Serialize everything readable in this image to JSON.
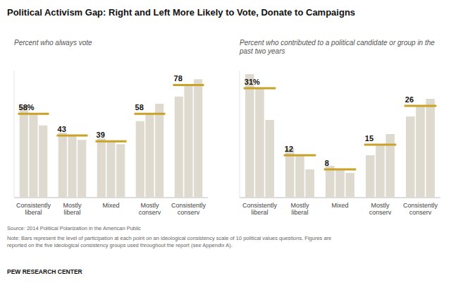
{
  "chart_data": [
    {
      "type": "bar",
      "title": "Political Activism Gap: Right and Left More Likely to Vote, Donate to Campaigns",
      "subtitle": "Percent who always vote",
      "categories": [
        "Consistently\nliberal",
        "Mostly\nliberal",
        "Mixed",
        "Mostly\nconserv",
        "Consistently\nconserv"
      ],
      "series": [
        {
          "color": "#dedad0",
          "values": [
            64,
            45,
            41,
            53,
            70
          ]
        },
        {
          "color": "#dedad0",
          "values": [
            58,
            43,
            39,
            58,
            78
          ]
        },
        {
          "color": "#dedad0",
          "values": [
            50,
            40,
            37,
            65,
            82
          ]
        },
        {
          "type": "line",
          "marker": "hline",
          "color": "#c9a227",
          "data_labels": true,
          "values": [
            58,
            43,
            39,
            58,
            78
          ],
          "value_labels": [
            "58%",
            "43",
            "39",
            "58",
            "78"
          ]
        }
      ],
      "ylim": [
        0,
        88
      ],
      "tick_labels": false,
      "grid": false,
      "annotations": [
        "Source: 2014 Political Polarization in the American Public",
        "Note: Bars represent the level of participation at each point on an ideological consistency scale of 10 political values questions. Figures are\nreported on the five ideological consistency groups used throughout the report (see Appendix A).",
        "PEW RESEARCH CENTER"
      ]
    },
    {
      "type": "bar",
      "subtitle": "Percent who contributed to a political candidate or group in the past two years",
      "categories": [
        "Consistently\nliberal",
        "Mostly\nliberal",
        "Mixed",
        "Mostly\nconserv",
        "Consistently\nconserv"
      ],
      "series": [
        {
          "color": "#dedad0",
          "values": [
            35,
            14,
            9,
            12,
            23
          ]
        },
        {
          "color": "#dedad0",
          "values": [
            31,
            12,
            8,
            15,
            26
          ]
        },
        {
          "color": "#dedad0",
          "values": [
            22,
            8,
            7,
            18,
            28
          ]
        },
        {
          "type": "line",
          "marker": "hline",
          "color": "#c9a227",
          "data_labels": true,
          "values": [
            31,
            12,
            8,
            15,
            26
          ],
          "value_labels": [
            "31%",
            "12",
            "8",
            "15",
            "26"
          ]
        }
      ],
      "ylim": [
        0,
        36
      ],
      "tick_labels": false,
      "grid": false
    }
  ]
}
